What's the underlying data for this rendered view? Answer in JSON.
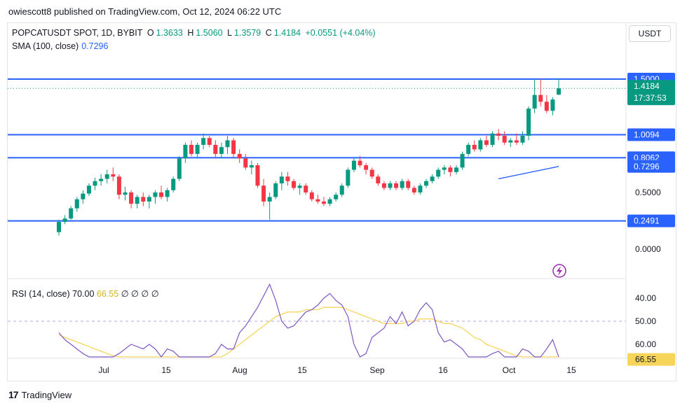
{
  "header": {
    "publisher": "owiescott8 published on TradingView.com, Oct 12, 2024 06:22 UTC"
  },
  "legend": {
    "symbol": "POPCATUSDT SPOT, 1D, BYBIT",
    "o_label": "O",
    "o": "1.3633",
    "h_label": "H",
    "h": "1.5060",
    "l_label": "L",
    "l": "1.3579",
    "c_label": "C",
    "c": "1.4184",
    "change": "+0.0551 (+4.04%)"
  },
  "sma_legend": {
    "label": "SMA (100, close)",
    "value": "0.7296"
  },
  "rsi_legend": {
    "label": "RSI (14, close)",
    "value1": "70.00",
    "value2": "66.55",
    "extra": "∅ ∅ ∅ ∅"
  },
  "currency_button": "USDT",
  "footer": {
    "brand": "TradingView",
    "logo_mark": "17"
  },
  "colors": {
    "up": "#089981",
    "down": "#f23645",
    "level_line": "#2962ff",
    "sma": "#2962ff",
    "rsi": "#7e57c2",
    "rsi_ma": "#f7d55a",
    "rsi_band": "#ede7f6"
  },
  "chart_data": [
    {
      "type": "candlestick",
      "x_tick_labels": [
        "Jul",
        "15",
        "Aug",
        "15",
        "Sep",
        "16",
        "Oct",
        "15"
      ],
      "price_axis_labels": [
        "1.0094",
        "0.5000",
        "0.0000"
      ],
      "horizontal_levels": [
        "1.5000",
        "1.0094",
        "0.8062",
        "0.2491"
      ],
      "price_tags": [
        {
          "label": "1.5000",
          "value": 1.5,
          "kind": "level"
        },
        {
          "label": "1.4184",
          "value": 1.4184,
          "kind": "last",
          "sub": "17:37:53"
        },
        {
          "label": "1.0094",
          "value": 1.0094,
          "kind": "level"
        },
        {
          "label": "0.8062",
          "value": 0.8062,
          "kind": "level"
        },
        {
          "label": "0.7296",
          "value": 0.7296,
          "kind": "sma"
        },
        {
          "label": "0.2491",
          "value": 0.2491,
          "kind": "level"
        }
      ],
      "candles": [
        [
          0.15,
          0.26,
          0.12,
          0.24
        ],
        [
          0.24,
          0.3,
          0.22,
          0.27
        ],
        [
          0.27,
          0.38,
          0.26,
          0.36
        ],
        [
          0.36,
          0.46,
          0.33,
          0.44
        ],
        [
          0.44,
          0.52,
          0.4,
          0.49
        ],
        [
          0.49,
          0.58,
          0.47,
          0.56
        ],
        [
          0.56,
          0.63,
          0.52,
          0.6
        ],
        [
          0.6,
          0.66,
          0.56,
          0.62
        ],
        [
          0.62,
          0.7,
          0.58,
          0.66
        ],
        [
          0.66,
          0.72,
          0.6,
          0.64
        ],
        [
          0.64,
          0.66,
          0.44,
          0.48
        ],
        [
          0.48,
          0.55,
          0.43,
          0.5
        ],
        [
          0.5,
          0.52,
          0.36,
          0.4
        ],
        [
          0.4,
          0.48,
          0.36,
          0.46
        ],
        [
          0.46,
          0.5,
          0.38,
          0.42
        ],
        [
          0.42,
          0.48,
          0.36,
          0.46
        ],
        [
          0.46,
          0.52,
          0.4,
          0.5
        ],
        [
          0.5,
          0.56,
          0.44,
          0.46
        ],
        [
          0.46,
          0.54,
          0.42,
          0.52
        ],
        [
          0.52,
          0.64,
          0.5,
          0.62
        ],
        [
          0.62,
          0.82,
          0.6,
          0.8
        ],
        [
          0.8,
          0.94,
          0.76,
          0.92
        ],
        [
          0.92,
          0.96,
          0.82,
          0.84
        ],
        [
          0.84,
          0.94,
          0.8,
          0.92
        ],
        [
          0.92,
          1.02,
          0.88,
          0.98
        ],
        [
          0.98,
          1.0,
          0.9,
          0.92
        ],
        [
          0.92,
          0.96,
          0.8,
          0.84
        ],
        [
          0.84,
          0.94,
          0.8,
          0.9
        ],
        [
          0.9,
          1.0,
          0.84,
          0.96
        ],
        [
          0.96,
          0.98,
          0.8,
          0.84
        ],
        [
          0.84,
          0.88,
          0.76,
          0.8
        ],
        [
          0.8,
          0.84,
          0.7,
          0.72
        ],
        [
          0.72,
          0.78,
          0.66,
          0.74
        ],
        [
          0.74,
          0.76,
          0.54,
          0.56
        ],
        [
          0.56,
          0.62,
          0.38,
          0.42
        ],
        [
          0.42,
          0.5,
          0.26,
          0.46
        ],
        [
          0.46,
          0.6,
          0.44,
          0.58
        ],
        [
          0.58,
          0.68,
          0.52,
          0.64
        ],
        [
          0.64,
          0.68,
          0.56,
          0.6
        ],
        [
          0.6,
          0.62,
          0.52,
          0.54
        ],
        [
          0.54,
          0.58,
          0.48,
          0.56
        ],
        [
          0.56,
          0.58,
          0.48,
          0.5
        ],
        [
          0.5,
          0.52,
          0.42,
          0.44
        ],
        [
          0.44,
          0.48,
          0.4,
          0.42
        ],
        [
          0.42,
          0.46,
          0.38,
          0.4
        ],
        [
          0.4,
          0.46,
          0.38,
          0.44
        ],
        [
          0.44,
          0.5,
          0.42,
          0.48
        ],
        [
          0.48,
          0.58,
          0.46,
          0.56
        ],
        [
          0.56,
          0.72,
          0.54,
          0.7
        ],
        [
          0.7,
          0.8,
          0.68,
          0.78
        ],
        [
          0.78,
          0.82,
          0.72,
          0.74
        ],
        [
          0.74,
          0.76,
          0.66,
          0.7
        ],
        [
          0.7,
          0.72,
          0.62,
          0.64
        ],
        [
          0.64,
          0.66,
          0.56,
          0.58
        ],
        [
          0.58,
          0.6,
          0.52,
          0.54
        ],
        [
          0.54,
          0.6,
          0.52,
          0.58
        ],
        [
          0.58,
          0.6,
          0.52,
          0.54
        ],
        [
          0.54,
          0.62,
          0.52,
          0.6
        ],
        [
          0.6,
          0.62,
          0.52,
          0.54
        ],
        [
          0.54,
          0.56,
          0.48,
          0.5
        ],
        [
          0.5,
          0.58,
          0.48,
          0.56
        ],
        [
          0.56,
          0.62,
          0.54,
          0.6
        ],
        [
          0.6,
          0.66,
          0.58,
          0.64
        ],
        [
          0.64,
          0.72,
          0.62,
          0.7
        ],
        [
          0.7,
          0.74,
          0.66,
          0.72
        ],
        [
          0.72,
          0.74,
          0.64,
          0.68
        ],
        [
          0.68,
          0.74,
          0.66,
          0.72
        ],
        [
          0.72,
          0.86,
          0.7,
          0.84
        ],
        [
          0.84,
          0.94,
          0.82,
          0.92
        ],
        [
          0.92,
          0.96,
          0.86,
          0.88
        ],
        [
          0.88,
          0.98,
          0.86,
          0.96
        ],
        [
          0.96,
          1.0,
          0.9,
          0.92
        ],
        [
          0.92,
          1.04,
          0.9,
          1.02
        ],
        [
          1.02,
          1.06,
          0.96,
          1.0
        ],
        [
          1.0,
          1.04,
          0.92,
          0.94
        ],
        [
          0.94,
          0.98,
          0.9,
          0.96
        ],
        [
          0.96,
          1.02,
          0.92,
          0.94
        ],
        [
          0.94,
          1.04,
          0.92,
          1.0
        ],
        [
          1.0,
          1.26,
          0.96,
          1.24
        ],
        [
          1.24,
          1.5,
          1.2,
          1.36
        ],
        [
          1.36,
          1.5,
          1.26,
          1.3
        ],
        [
          1.3,
          1.36,
          1.2,
          1.22
        ],
        [
          1.22,
          1.34,
          1.18,
          1.32
        ],
        [
          1.3633,
          1.506,
          1.3579,
          1.4184
        ]
      ],
      "sma_100": {
        "start_value": 0.62,
        "end_value": 0.7296,
        "last": 0.7296
      }
    },
    {
      "type": "line",
      "name": "RSI (14, close)",
      "y_tick_labels": [
        "66.55",
        "60.00",
        "50.00",
        "40.00"
      ],
      "band": [
        30,
        70
      ],
      "rsi": [
        55,
        58,
        60,
        62,
        64,
        66,
        68,
        67,
        68,
        69,
        64,
        62,
        60,
        61,
        62,
        60,
        62,
        66,
        62,
        63,
        68,
        70,
        72,
        71,
        72,
        69,
        64,
        60,
        62,
        62,
        55,
        52,
        48,
        44,
        39,
        34,
        41,
        50,
        53,
        52,
        49,
        46,
        45,
        43,
        40,
        38,
        41,
        43,
        48,
        60,
        67,
        64,
        57,
        55,
        53,
        48,
        51,
        46,
        52,
        50,
        45,
        42,
        45,
        55,
        59,
        58,
        60,
        62,
        70,
        72,
        66,
        67,
        64,
        63,
        68,
        70,
        68,
        62,
        63,
        71,
        72,
        62,
        58,
        66.55
      ],
      "rsi_ma": [
        56,
        57,
        58,
        59,
        60,
        61,
        62,
        63,
        64,
        65,
        66,
        66,
        66,
        66,
        66,
        66,
        66,
        66,
        66,
        67,
        67,
        67,
        68,
        68,
        68,
        68,
        68,
        66,
        64,
        62,
        60,
        58,
        56,
        54,
        52,
        50,
        48,
        47,
        46,
        46,
        46,
        45,
        45,
        45,
        44,
        44,
        44,
        44,
        45,
        46,
        47,
        48,
        49,
        50,
        51,
        51,
        51,
        51,
        50,
        50,
        49,
        49,
        49,
        50,
        51,
        51,
        52,
        53,
        55,
        57,
        58,
        60,
        61,
        62,
        63,
        64,
        65,
        66,
        66,
        66,
        67,
        67,
        67,
        70
      ]
    }
  ]
}
